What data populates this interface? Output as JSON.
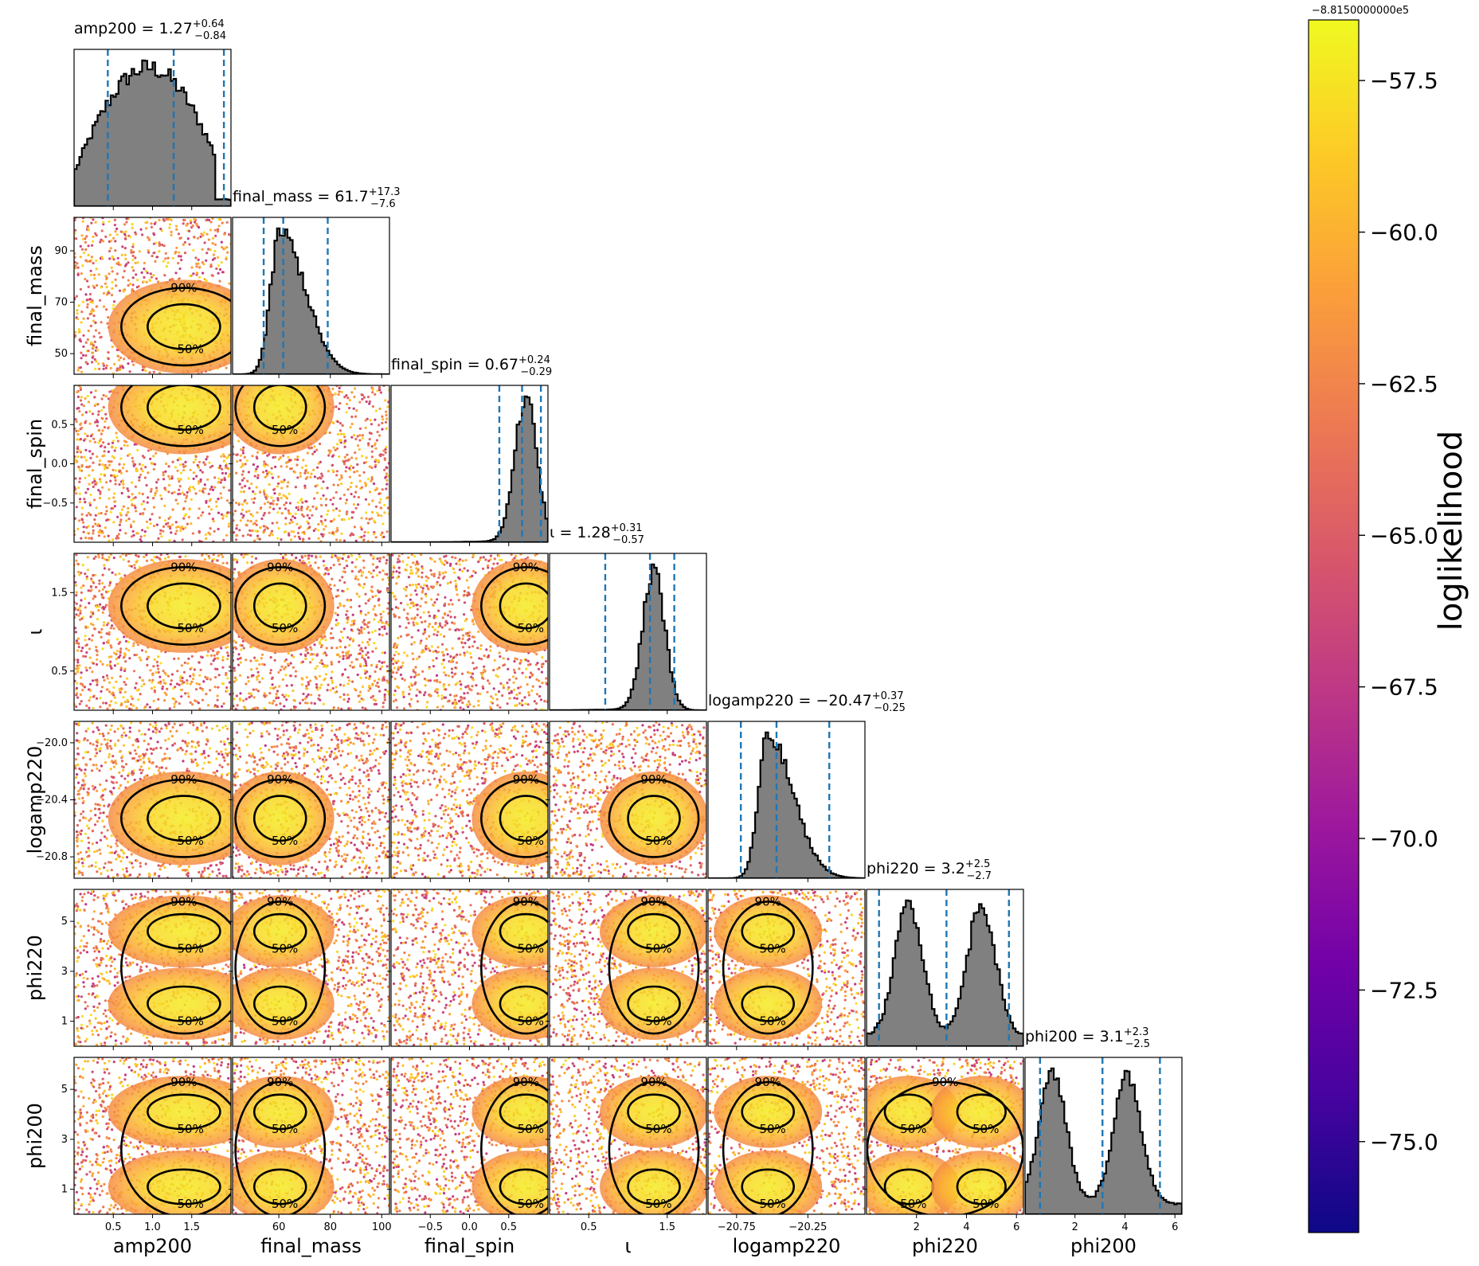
{
  "chart_data": {
    "type": "scatter",
    "subtype": "corner-plot",
    "parameters": [
      {
        "key": "amp200",
        "label": "amp200",
        "range": [
          0.0,
          2.0
        ],
        "ticks": [
          0.5,
          1.0,
          1.5
        ],
        "tick_labels": [
          "0.5",
          "1.0",
          "1.5"
        ],
        "title": "amp200 = 1.27",
        "sup": "+0.64",
        "sub": "−0.84",
        "quantiles": [
          0.43,
          1.27,
          1.91
        ],
        "hist": "broad",
        "peaks": [
          1.4
        ]
      },
      {
        "key": "final_mass",
        "label": "final_mass",
        "range": [
          42,
          103
        ],
        "ticks": [
          60,
          80,
          100
        ],
        "tick_labels": [
          "60",
          "80",
          "100"
        ],
        "yticks": [
          50,
          70,
          90
        ],
        "ytick_labels": [
          "50",
          "70",
          "90"
        ],
        "title": "final_mass = 61.7",
        "sup": "+17.3",
        "sub": "−7.6",
        "quantiles": [
          54.1,
          61.7,
          79.0
        ],
        "hist": "skewed",
        "peaks": [
          60.5
        ]
      },
      {
        "key": "final_spin",
        "label": "final_spin",
        "range": [
          -1.0,
          1.0
        ],
        "ticks": [
          -0.5,
          0.0,
          0.5
        ],
        "tick_labels": [
          "−0.5",
          "0.0",
          "0.5"
        ],
        "title": "final_spin = 0.67",
        "sup": "+0.24",
        "sub": "−0.29",
        "quantiles": [
          0.38,
          0.67,
          0.91
        ],
        "hist": "narrow",
        "peaks": [
          0.72
        ]
      },
      {
        "key": "iota",
        "label": "ι",
        "range": [
          0.0,
          2.0
        ],
        "ticks": [
          0.5,
          1.5
        ],
        "tick_labels": [
          "0.5",
          "1.5"
        ],
        "title": "ι = 1.28",
        "sup": "+0.31",
        "sub": "−0.57",
        "quantiles": [
          0.71,
          1.28,
          1.59
        ],
        "hist": "narrow",
        "peaks": [
          1.33
        ]
      },
      {
        "key": "logamp220",
        "label": "logamp220",
        "range": [
          -20.95,
          -19.85
        ],
        "ticks": [
          -20.75,
          -20.25
        ],
        "tick_labels": [
          "−20.75",
          "−20.25"
        ],
        "yticks": [
          -20.0,
          -20.4,
          -20.8
        ],
        "ytick_labels": [
          "−20.0",
          "−20.4",
          "−20.8"
        ],
        "title": "logamp220 = −20.47",
        "sup": "+0.37",
        "sub": "−0.25",
        "quantiles": [
          -20.72,
          -20.47,
          -20.1
        ],
        "hist": "skewed",
        "peaks": [
          -20.53
        ]
      },
      {
        "key": "phi220",
        "label": "phi220",
        "range": [
          0.0,
          6.28
        ],
        "ticks": [
          2,
          4,
          6
        ],
        "tick_labels": [
          "2",
          "4",
          "6"
        ],
        "yticks": [
          1,
          3,
          5
        ],
        "ytick_labels": [
          "1",
          "3",
          "5"
        ],
        "title": "phi220 = 3.2",
        "sup": "+2.5",
        "sub": "−2.7",
        "quantiles": [
          0.5,
          3.2,
          5.7
        ],
        "hist": "bimodal",
        "peaks": [
          1.7,
          4.6
        ]
      },
      {
        "key": "phi200",
        "label": "phi200",
        "range": [
          0.0,
          6.28
        ],
        "ticks": [
          2,
          4,
          6
        ],
        "tick_labels": [
          "2",
          "4",
          "6"
        ],
        "yticks": [
          1,
          3,
          5
        ],
        "ytick_labels": [
          "1",
          "3",
          "5"
        ],
        "title": "phi200 = 3.1",
        "sup": "+2.3",
        "sub": "−2.5",
        "quantiles": [
          0.6,
          3.1,
          5.4
        ],
        "hist": "bimodal",
        "peaks": [
          1.1,
          4.1
        ]
      }
    ],
    "contour_levels": [
      "50%",
      "90%"
    ],
    "colorbar": {
      "label": "loglikelihood",
      "offset_text": "−8.8150000000e5",
      "range": [
        -76.5,
        -56.5
      ],
      "ticks": [
        -57.5,
        -60.0,
        -62.5,
        -65.0,
        -67.5,
        -70.0,
        -72.5,
        -75.0
      ],
      "tick_labels": [
        "−57.5",
        "−60.0",
        "−62.5",
        "−65.0",
        "−67.5",
        "−70.0",
        "−72.5",
        "−75.0"
      ],
      "colormap": "plasma",
      "colormap_stops": [
        "#0d0887",
        "#46039f",
        "#7201a8",
        "#9c179e",
        "#bd3786",
        "#d8576b",
        "#ed7953",
        "#fb9f3a",
        "#fdca26",
        "#f0f921"
      ]
    },
    "colors": {
      "histogram_fill": "#808080",
      "histogram_edge": "#000000",
      "median_line": "#1f77b4",
      "contour": "#000000"
    },
    "grid": false
  }
}
